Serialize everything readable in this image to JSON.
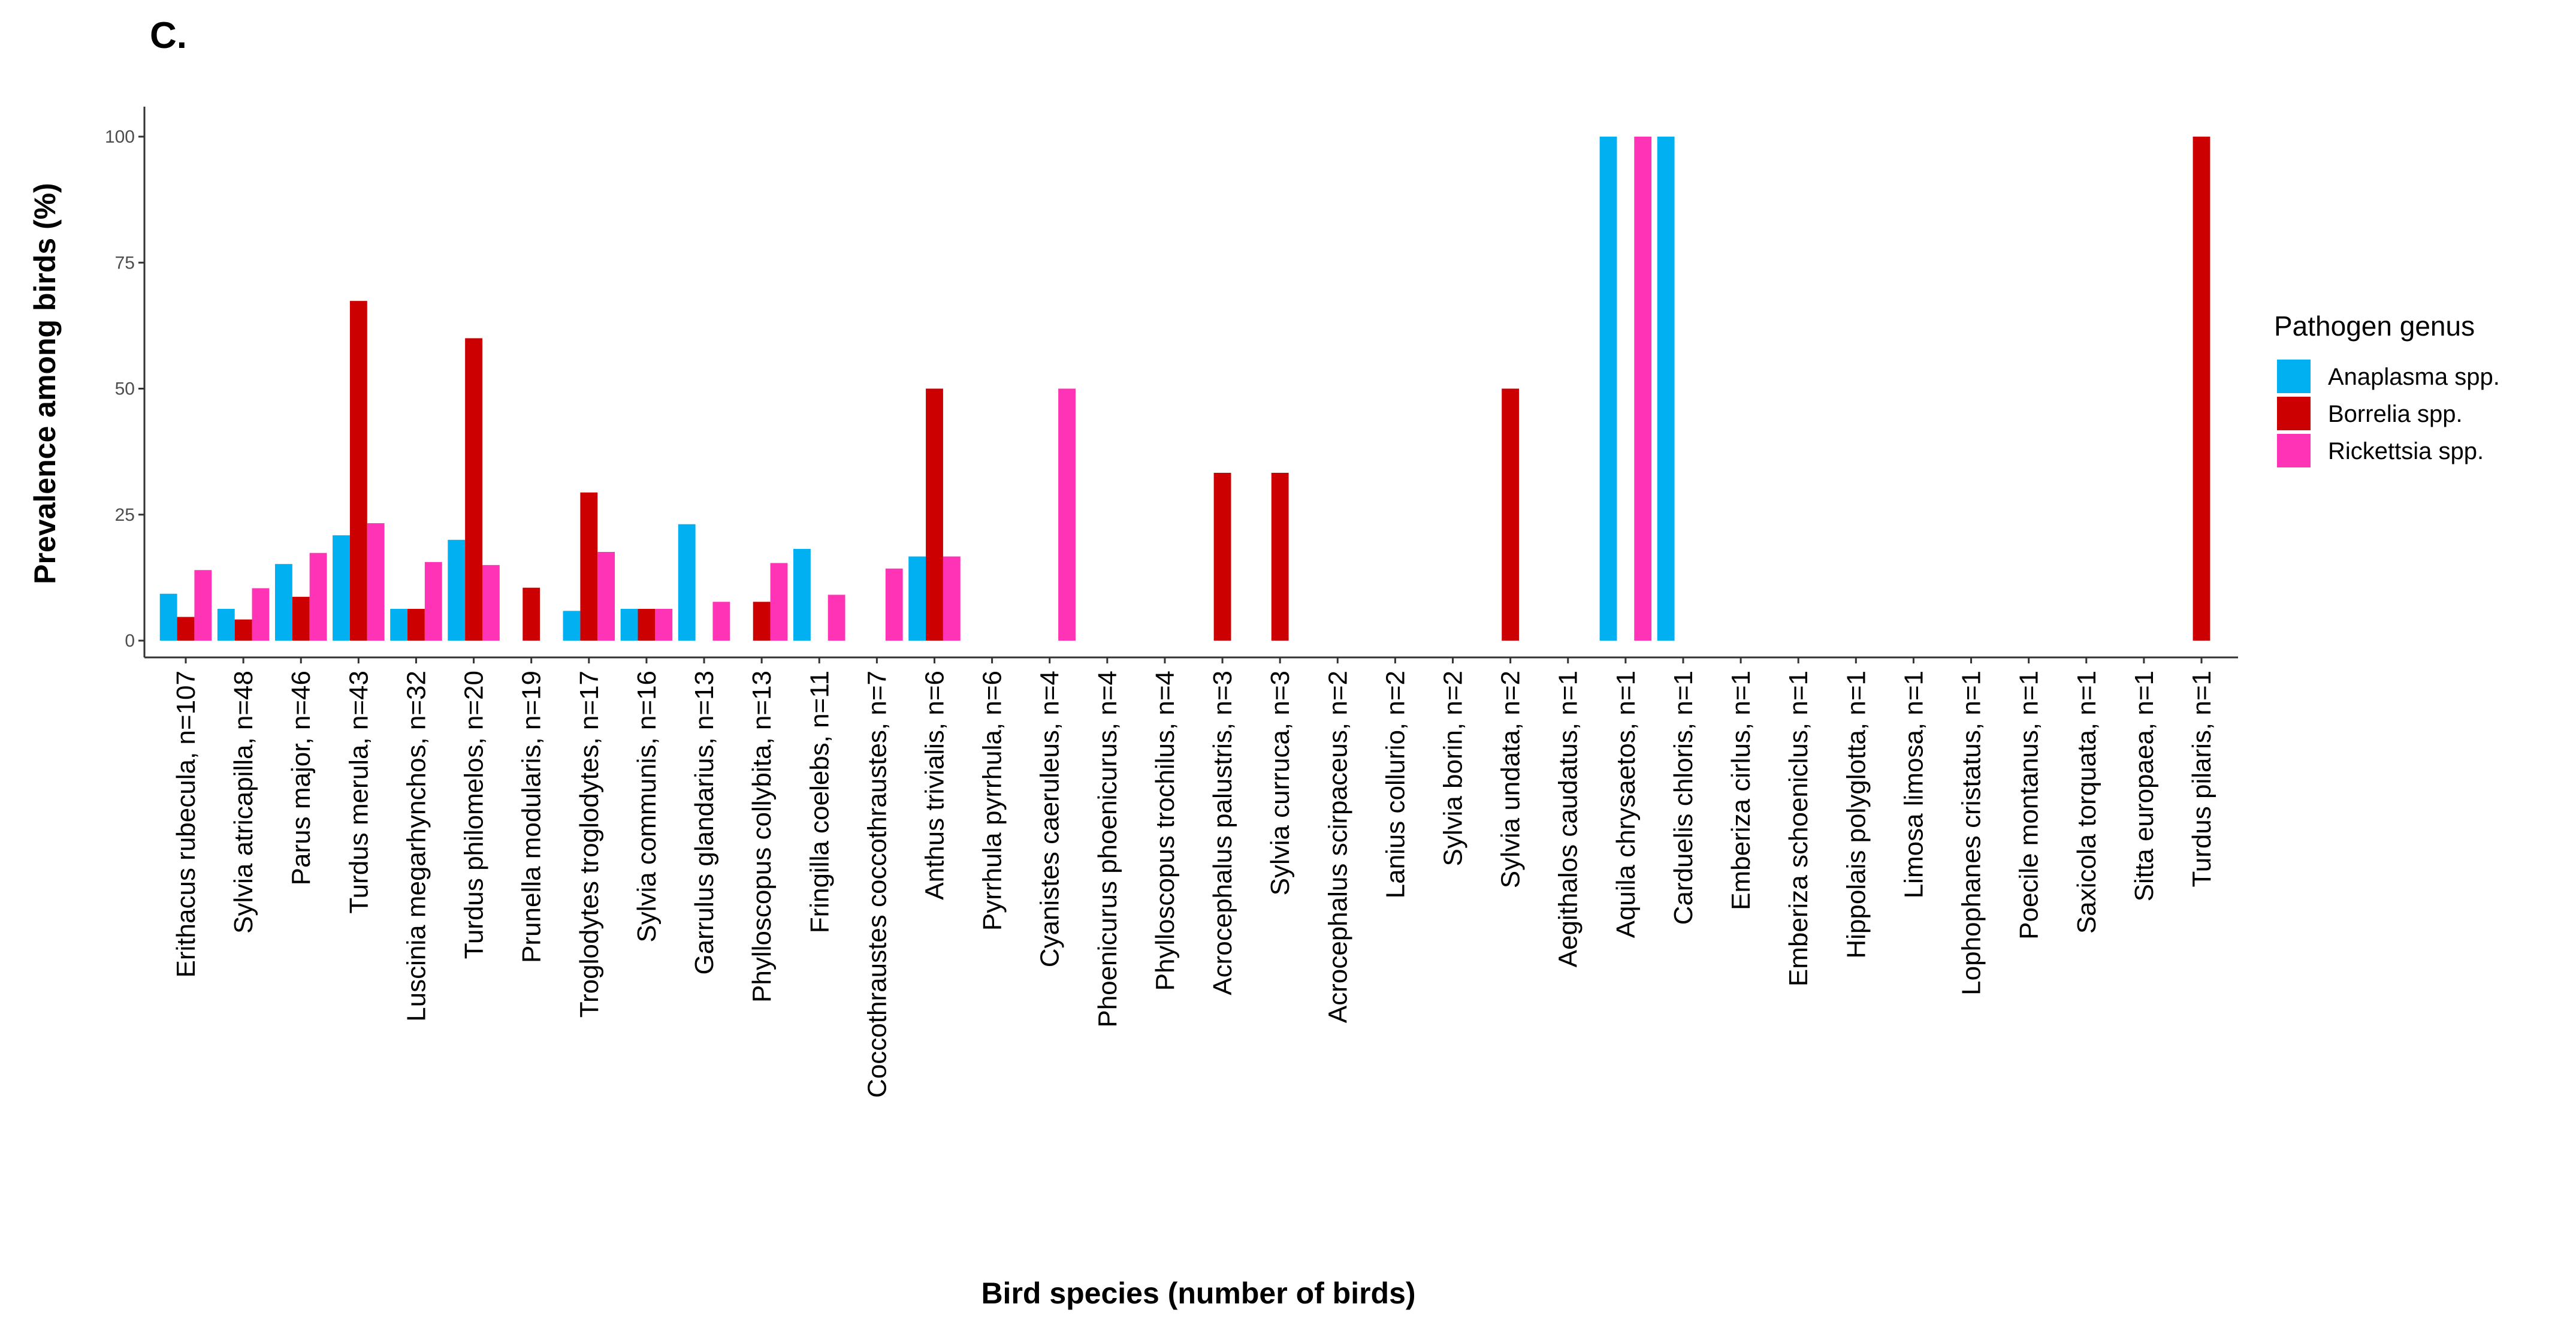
{
  "panel_label": "C.",
  "chart_data": {
    "type": "bar",
    "title": "",
    "xlabel": "Bird species (number of birds)",
    "ylabel": "Prevalence among birds (%)",
    "ylim": [
      0,
      105
    ],
    "yticks": [
      0,
      25,
      50,
      75,
      100
    ],
    "grid": false,
    "legend": {
      "title": "Pathogen genus",
      "placement": "right"
    },
    "categories": [
      "Erithacus rubecula, n=107",
      "Sylvia atricapilla, n=48",
      "Parus major, n=46",
      "Turdus merula, n=43",
      "Luscinia megarhynchos, n=32",
      "Turdus philomelos, n=20",
      "Prunella modularis, n=19",
      "Troglodytes troglodytes, n=17",
      "Sylvia communis, n=16",
      "Garrulus glandarius, n=13",
      "Phylloscopus collybita, n=13",
      "Fringilla coelebs, n=11",
      "Coccothraustes coccothraustes, n=7",
      "Anthus trivialis, n=6",
      "Pyrrhula pyrrhula, n=6",
      "Cyanistes caeruleus, n=4",
      "Phoenicurus phoenicurus, n=4",
      "Phylloscopus trochilus, n=4",
      "Acrocephalus palustris, n=3",
      "Sylvia curruca, n=3",
      "Acrocephalus scirpaceus, n=2",
      "Lanius collurio, n=2",
      "Sylvia borin, n=2",
      "Sylvia undata, n=2",
      "Aegithalos caudatus, n=1",
      "Aquila chrysaetos, n=1",
      "Carduelis chloris, n=1",
      "Emberiza cirlus, n=1",
      "Emberiza schoeniclus, n=1",
      "Hippolais polyglotta, n=1",
      "Limosa limosa, n=1",
      "Lophophanes cristatus, n=1",
      "Poecile montanus, n=1",
      "Saxicola torquata, n=1",
      "Sitta europaea, n=1",
      "Turdus pilaris, n=1"
    ],
    "series": [
      {
        "name": "Anaplasma spp.",
        "color": "#00B0F0",
        "values": [
          9.3,
          6.3,
          15.2,
          20.9,
          6.3,
          20,
          0,
          5.9,
          6.3,
          23.1,
          0,
          18.2,
          0,
          16.7,
          0,
          0,
          0,
          0,
          0,
          0,
          0,
          0,
          0,
          0,
          0,
          100,
          100,
          0,
          0,
          0,
          0,
          0,
          0,
          0,
          0,
          0
        ]
      },
      {
        "name": "Borrelia spp.",
        "color": "#CC0000",
        "values": [
          4.7,
          4.2,
          8.7,
          67.4,
          6.3,
          60,
          10.5,
          29.4,
          6.3,
          0,
          7.7,
          0,
          0,
          50,
          0,
          0,
          0,
          0,
          33.3,
          33.3,
          0,
          0,
          0,
          50,
          0,
          0,
          0,
          0,
          0,
          0,
          0,
          0,
          0,
          0,
          0,
          100
        ]
      },
      {
        "name": "Rickettsia spp.",
        "color": "#FF33B5",
        "values": [
          14,
          10.4,
          17.4,
          23.3,
          15.6,
          15,
          0,
          17.6,
          6.3,
          7.7,
          15.4,
          9.1,
          14.3,
          16.7,
          0,
          50,
          0,
          0,
          0,
          0,
          0,
          0,
          0,
          0,
          0,
          100,
          0,
          0,
          0,
          0,
          0,
          0,
          0,
          0,
          0,
          0
        ]
      }
    ]
  }
}
